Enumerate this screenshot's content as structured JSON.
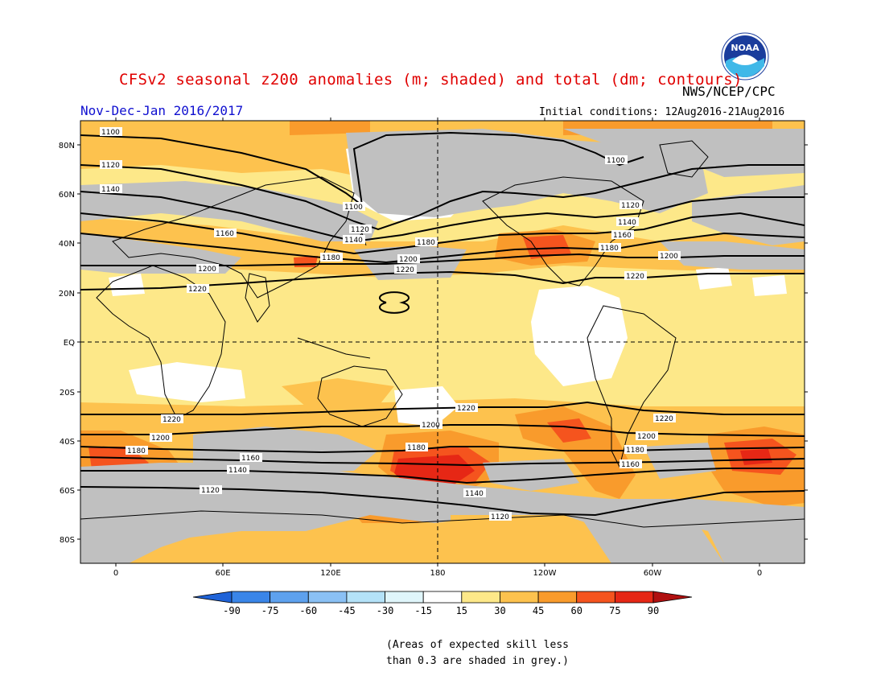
{
  "header": {
    "title": "CFSv2 seasonal z200 anomalies (m; shaded) and total (dm; contours)",
    "agency": "NWS/NCEP/CPC",
    "season": "Nov-Dec-Jan 2016/2017",
    "initial_conditions": "Initial conditions: 12Aug2016-21Aug2016",
    "logo_text": "NOAA"
  },
  "map": {
    "lat_labels": [
      "80N",
      "60N",
      "40N",
      "20N",
      "EQ",
      "20S",
      "40S",
      "60S",
      "80S"
    ],
    "lon_labels": [
      "0",
      "60E",
      "120E",
      "180",
      "120W",
      "60W",
      "0"
    ],
    "contour_labels": [
      "1100",
      "1120",
      "1140",
      "1160",
      "1180",
      "1200",
      "1220"
    ]
  },
  "colorbar": {
    "ticks": [
      "-90",
      "-75",
      "-60",
      "-45",
      "-30",
      "-15",
      "15",
      "30",
      "45",
      "60",
      "75",
      "90"
    ],
    "colors": [
      "#1f63d8",
      "#3a85e8",
      "#5ea1ee",
      "#8ac0f4",
      "#b4e2f8",
      "#e0f6fb",
      "#ffffff",
      "#fde889",
      "#fdc24e",
      "#f99b2c",
      "#f5541e",
      "#e62715",
      "#b01010"
    ],
    "map_colors": {
      "grey": "#c0c0c0",
      "ocean_base": "#fde889",
      "c30": "#fdc24e",
      "c45": "#f99b2c",
      "c60": "#f5541e",
      "c75": "#e62715",
      "c90": "#b01010"
    }
  },
  "note": "(Areas of expected skill less than 0.3 are shaded in grey.)"
}
